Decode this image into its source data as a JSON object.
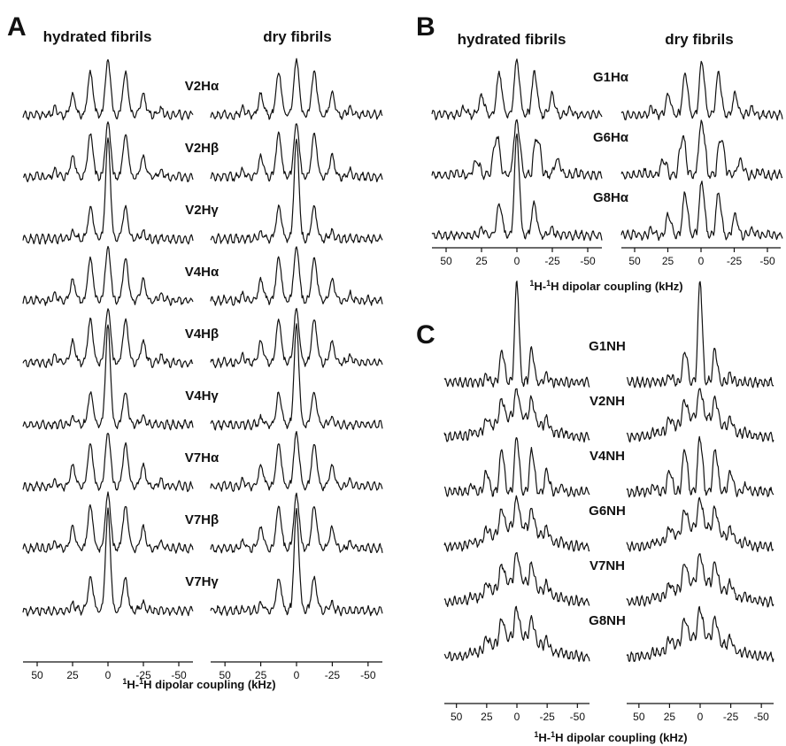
{
  "chart_data": [
    {
      "panel": "A",
      "type": "line",
      "column_titles": [
        "hydrated fibrils",
        "dry fibrils"
      ],
      "series": [
        {
          "name": "V2Hα"
        },
        {
          "name": "V2Hβ"
        },
        {
          "name": "V2Hγ"
        },
        {
          "name": "V4Hα"
        },
        {
          "name": "V4Hβ"
        },
        {
          "name": "V4Hγ"
        },
        {
          "name": "V7Hα"
        },
        {
          "name": "V7Hβ"
        },
        {
          "name": "V7Hγ"
        }
      ],
      "xticks": [
        "50",
        "25",
        "0",
        "-25",
        "-50"
      ],
      "xlim": [
        60,
        -60
      ],
      "xlabel": "1H-1H dipolar coupling (kHz)"
    },
    {
      "panel": "B",
      "type": "line",
      "column_titles": [
        "hydrated fibrils",
        "dry fibrils"
      ],
      "series": [
        {
          "name": "G1Hα"
        },
        {
          "name": "G6Hα"
        },
        {
          "name": "G8Hα"
        }
      ],
      "xticks": [
        "50",
        "25",
        "0",
        "-25",
        "-50"
      ],
      "xlim": [
        60,
        -60
      ],
      "xlabel": "1H-1H dipolar coupling (kHz)"
    },
    {
      "panel": "C",
      "type": "line",
      "column_titles": [],
      "series": [
        {
          "name": "G1NH"
        },
        {
          "name": "V2NH"
        },
        {
          "name": "V4NH"
        },
        {
          "name": "G6NH"
        },
        {
          "name": "V7NH"
        },
        {
          "name": "G8NH"
        }
      ],
      "xticks": [
        "50",
        "25",
        "0",
        "-25",
        "-50"
      ],
      "xlim": [
        60,
        -60
      ],
      "xlabel": "1H-1H dipolar coupling (kHz)"
    }
  ]
}
